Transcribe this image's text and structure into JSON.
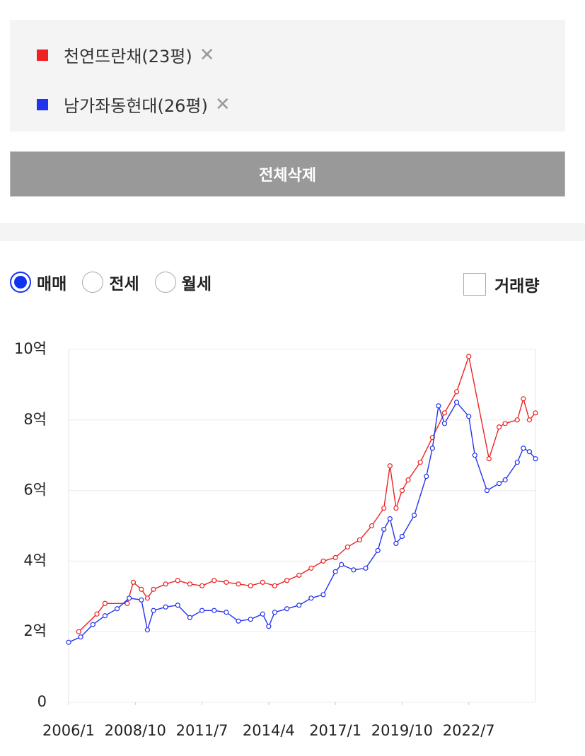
{
  "clear_button": "전체삭제",
  "trade_types": [
    {
      "label": "매매",
      "selected": true
    },
    {
      "label": "전세",
      "selected": false
    },
    {
      "label": "월세",
      "selected": false
    }
  ],
  "volume_checkbox": {
    "label": "거래량",
    "checked": false
  },
  "chart_data": {
    "type": "line",
    "xlim": [
      "2006/1",
      "2025/4"
    ],
    "xticks": [
      "2006/1",
      "2008/10",
      "2011/7",
      "2014/4",
      "2017/1",
      "2019/10",
      "2022/7"
    ],
    "ylim": [
      0,
      10
    ],
    "yticks": [
      0,
      {
        "value": 2,
        "label": "2억"
      },
      {
        "value": 4,
        "label": "4억"
      },
      {
        "value": 6,
        "label": "6억"
      },
      {
        "value": 8,
        "label": "8억"
      },
      {
        "value": 10,
        "label": "10억"
      }
    ],
    "grid": true,
    "series": [
      {
        "name": "천연뜨란채(23평)",
        "color": "#ee2222",
        "x": [
          "2006/6",
          "2007/3",
          "2007/7",
          "2008/6",
          "2008/9",
          "2009/1",
          "2009/4",
          "2009/7",
          "2010/1",
          "2010/7",
          "2011/1",
          "2011/7",
          "2012/1",
          "2012/7",
          "2013/1",
          "2013/7",
          "2014/1",
          "2014/7",
          "2015/1",
          "2015/7",
          "2016/1",
          "2016/7",
          "2017/1",
          "2017/7",
          "2018/1",
          "2018/7",
          "2019/1",
          "2019/4",
          "2019/7",
          "2019/10",
          "2020/1",
          "2020/7",
          "2021/1",
          "2021/7",
          "2022/1",
          "2022/7",
          "2023/5",
          "2023/10",
          "2024/1",
          "2024/7",
          "2024/10",
          "2025/1",
          "2025/4"
        ],
        "values": [
          2.0,
          2.5,
          2.8,
          2.8,
          3.4,
          3.2,
          2.95,
          3.2,
          3.35,
          3.45,
          3.35,
          3.3,
          3.45,
          3.4,
          3.35,
          3.3,
          3.4,
          3.3,
          3.45,
          3.6,
          3.8,
          4.0,
          4.1,
          4.4,
          4.6,
          5.0,
          5.5,
          6.7,
          5.5,
          6.0,
          6.3,
          6.8,
          7.5,
          8.2,
          8.8,
          9.8,
          6.9,
          7.8,
          7.9,
          8.0,
          8.6,
          8.0,
          8.2
        ]
      },
      {
        "name": "남가좌동현대(26평)",
        "color": "#2233ee",
        "x": [
          "2006/1",
          "2006/7",
          "2007/1",
          "2007/7",
          "2008/1",
          "2008/7",
          "2009/1",
          "2009/4",
          "2009/7",
          "2010/1",
          "2010/7",
          "2011/1",
          "2011/7",
          "2012/1",
          "2012/7",
          "2013/1",
          "2013/7",
          "2014/1",
          "2014/4",
          "2014/7",
          "2015/1",
          "2015/7",
          "2016/1",
          "2016/7",
          "2017/1",
          "2017/4",
          "2017/10",
          "2018/4",
          "2018/10",
          "2019/1",
          "2019/4",
          "2019/7",
          "2019/10",
          "2020/4",
          "2020/10",
          "2021/1",
          "2021/4",
          "2021/7",
          "2022/1",
          "2022/7",
          "2022/10",
          "2023/4",
          "2023/10",
          "2024/1",
          "2024/7",
          "2024/10",
          "2025/1",
          "2025/4"
        ],
        "values": [
          1.7,
          1.85,
          2.2,
          2.45,
          2.65,
          2.95,
          2.9,
          2.05,
          2.6,
          2.7,
          2.75,
          2.4,
          2.6,
          2.6,
          2.55,
          2.3,
          2.35,
          2.5,
          2.15,
          2.55,
          2.65,
          2.75,
          2.95,
          3.05,
          3.7,
          3.9,
          3.75,
          3.8,
          4.3,
          4.9,
          5.2,
          4.5,
          4.7,
          5.3,
          6.4,
          7.2,
          8.4,
          7.9,
          8.5,
          8.1,
          7.0,
          6.0,
          6.2,
          6.3,
          6.8,
          7.2,
          7.1,
          6.9
        ]
      }
    ]
  }
}
